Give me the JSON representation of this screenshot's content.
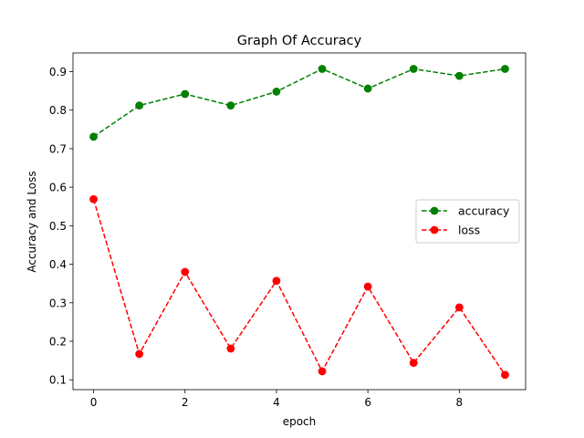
{
  "chart_data": {
    "type": "line",
    "title": "Graph Of Accuracy",
    "xlabel": "epoch",
    "ylabel": "Accuracy and Loss",
    "x": [
      0,
      1,
      2,
      3,
      4,
      5,
      6,
      7,
      8,
      9
    ],
    "xlim": [
      -0.45,
      9.45
    ],
    "ylim": [
      0.0745,
      0.9485
    ],
    "xticks": [
      0,
      2,
      4,
      6,
      8
    ],
    "yticks": [
      0.1,
      0.2,
      0.3,
      0.4,
      0.5,
      0.6,
      0.7,
      0.8,
      0.9
    ],
    "grid": false,
    "legend_position": "center-right",
    "series": [
      {
        "name": "accuracy",
        "color": "#008000",
        "line_style": "dashed",
        "marker": "circle",
        "values": [
          0.731,
          0.812,
          0.842,
          0.812,
          0.848,
          0.907,
          0.856,
          0.907,
          0.889,
          0.907
        ]
      },
      {
        "name": "loss",
        "color": "#ff0000",
        "line_style": "dashed",
        "marker": "circle",
        "values": [
          0.569,
          0.167,
          0.38,
          0.181,
          0.357,
          0.122,
          0.342,
          0.144,
          0.288,
          0.113
        ]
      }
    ]
  }
}
